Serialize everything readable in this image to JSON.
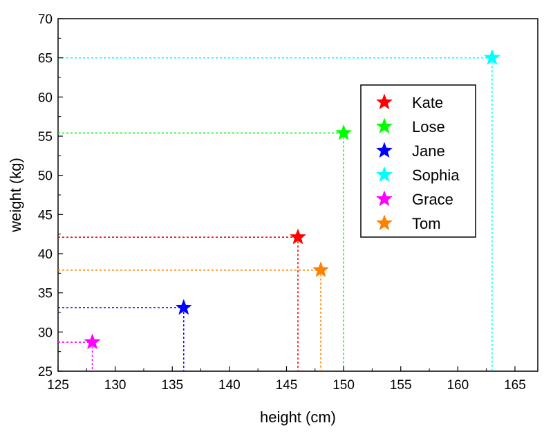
{
  "chart_data": {
    "type": "scatter",
    "xlabel": "height (cm)",
    "ylabel": "weight (kg)",
    "xlim": [
      125,
      167
    ],
    "ylim": [
      25,
      70
    ],
    "x_ticks": [
      125,
      130,
      135,
      140,
      145,
      150,
      155,
      160,
      165
    ],
    "y_ticks": [
      25,
      30,
      35,
      40,
      45,
      50,
      55,
      60,
      65,
      70
    ],
    "grid": false,
    "legend_position": "upper-right",
    "drop_lines": true,
    "marker": "star",
    "series": [
      {
        "name": "Kate",
        "x": 146,
        "y": 42.1,
        "color": "#ff0000"
      },
      {
        "name": "Lose",
        "x": 150,
        "y": 55.4,
        "color": "#00ff00"
      },
      {
        "name": "Jane",
        "x": 136,
        "y": 33.1,
        "color": "#0000ff"
      },
      {
        "name": "Sophia",
        "x": 163,
        "y": 65.0,
        "color": "#00ffff"
      },
      {
        "name": "Grace",
        "x": 128,
        "y": 28.7,
        "color": "#ff00ff"
      },
      {
        "name": "Tom",
        "x": 148,
        "y": 37.9,
        "color": "#ff8000"
      }
    ]
  }
}
